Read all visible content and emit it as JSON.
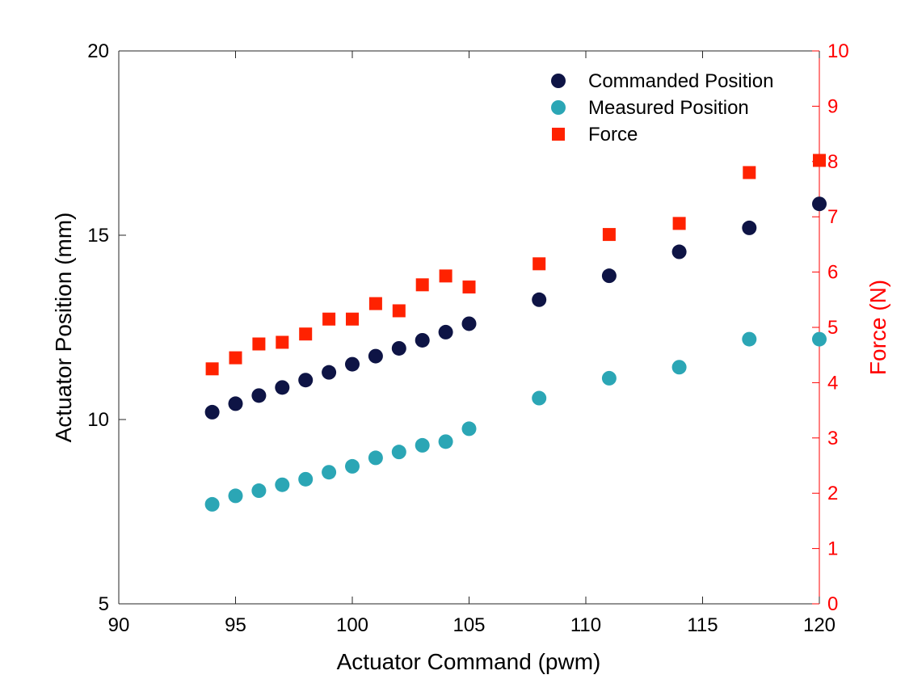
{
  "chart_data": {
    "type": "scatter",
    "title": "",
    "xlabel": "Actuator Command (pwm)",
    "ylabel": "Actuator Position (mm)",
    "y2label": "Force (N)",
    "xlim": [
      90,
      120
    ],
    "ylim": [
      5,
      20
    ],
    "y2lim": [
      0,
      10
    ],
    "xticks": [
      "90",
      "95",
      "100",
      "105",
      "110",
      "115",
      "120"
    ],
    "yticks": [
      "5",
      "10",
      "15",
      "20"
    ],
    "y2ticks": [
      "0",
      "1",
      "2",
      "3",
      "4",
      "5",
      "6",
      "7",
      "8",
      "9",
      "10"
    ],
    "grid": false,
    "legend_position": "top-right",
    "series": [
      {
        "name": "Commanded Position",
        "axis": "left",
        "marker": "circle",
        "color": "#0e1445",
        "x": [
          94,
          95,
          96,
          97,
          98,
          99,
          100,
          101,
          102,
          103,
          104,
          105,
          108,
          111,
          114,
          117,
          120
        ],
        "y": [
          10.2,
          10.43,
          10.65,
          10.87,
          11.07,
          11.28,
          11.5,
          11.72,
          11.93,
          12.15,
          12.37,
          12.6,
          13.25,
          13.9,
          14.55,
          15.2,
          15.85
        ]
      },
      {
        "name": "Measured Position",
        "axis": "left",
        "marker": "circle",
        "color": "#2ba6b5",
        "x": [
          94,
          95,
          96,
          97,
          98,
          99,
          100,
          101,
          102,
          103,
          104,
          105,
          108,
          111,
          114,
          117,
          120
        ],
        "y": [
          7.7,
          7.93,
          8.07,
          8.23,
          8.38,
          8.57,
          8.73,
          8.96,
          9.12,
          9.3,
          9.4,
          9.75,
          10.58,
          11.12,
          11.42,
          12.18,
          12.18
        ]
      },
      {
        "name": "Force",
        "axis": "right",
        "marker": "square",
        "color": "#ff2200",
        "x": [
          94,
          95,
          96,
          97,
          98,
          99,
          100,
          101,
          102,
          103,
          104,
          105,
          108,
          111,
          114,
          117,
          120
        ],
        "y": [
          4.25,
          4.45,
          4.7,
          4.73,
          4.88,
          5.15,
          5.15,
          5.43,
          5.3,
          5.77,
          5.93,
          5.73,
          6.15,
          6.68,
          6.88,
          7.8,
          8.02
        ]
      }
    ],
    "colors": {
      "left_axis": "#000000",
      "right_axis": "#ff0000"
    }
  }
}
